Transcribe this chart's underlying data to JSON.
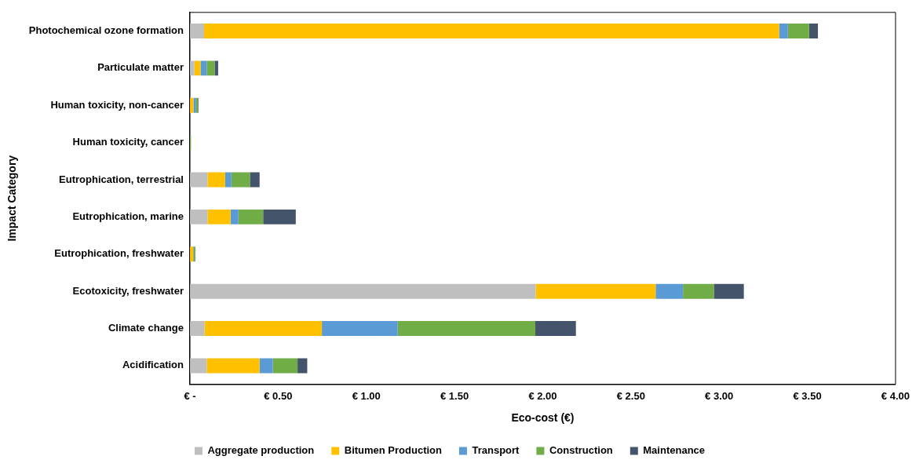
{
  "chart_data": {
    "type": "bar",
    "orientation": "horizontal",
    "stacked": true,
    "categories": [
      "Photochemical ozone formation",
      "Particulate matter",
      "Human toxicity, non-cancer",
      "Human toxicity, cancer",
      "Eutrophication, terrestrial",
      "Eutrophication, marine",
      "Eutrophication, freshwater",
      "Ecotoxicity, freshwater",
      "Climate change",
      "Acidification"
    ],
    "series": [
      {
        "name": "Aggregate production",
        "color": "#bfbfbf",
        "values": [
          0.08,
          0.025,
          0,
          0,
          0.1,
          0.1,
          0,
          1.96,
          0.083,
          0.095
        ]
      },
      {
        "name": "Bitumen Production",
        "color": "#ffc000",
        "values": [
          3.26,
          0.035,
          0.02,
          0,
          0.1,
          0.13,
          0.018,
          0.68,
          0.665,
          0.3
        ]
      },
      {
        "name": "Transport",
        "color": "#5b9bd5",
        "values": [
          0.05,
          0.035,
          0.015,
          0,
          0.035,
          0.045,
          0.003,
          0.155,
          0.43,
          0.075
        ]
      },
      {
        "name": "Construction",
        "color": "#70ad47",
        "values": [
          0.12,
          0.045,
          0.01,
          0.006,
          0.105,
          0.14,
          0.01,
          0.175,
          0.78,
          0.14
        ]
      },
      {
        "name": "Maintenance",
        "color": "#44546a",
        "values": [
          0.05,
          0.02,
          0.003,
          0,
          0.055,
          0.185,
          null,
          0.17,
          0.23,
          0.055
        ]
      }
    ],
    "xlim": [
      0,
      4
    ],
    "xticks": [
      {
        "value": 0,
        "label": "€ -"
      },
      {
        "value": 0.5,
        "label": "€ 0.50"
      },
      {
        "value": 1,
        "label": "€ 1.00"
      },
      {
        "value": 1.5,
        "label": "€ 1.50"
      },
      {
        "value": 2,
        "label": "€ 2.00"
      },
      {
        "value": 2.5,
        "label": "€ 2.50"
      },
      {
        "value": 3,
        "label": "€ 3.00"
      },
      {
        "value": 3.5,
        "label": "€ 3.50"
      },
      {
        "value": 4,
        "label": "€ 4.00"
      }
    ],
    "xlabel": "Eco-cost (€)",
    "ylabel": "Impact Category",
    "legend": "bottom",
    "grid": false
  }
}
